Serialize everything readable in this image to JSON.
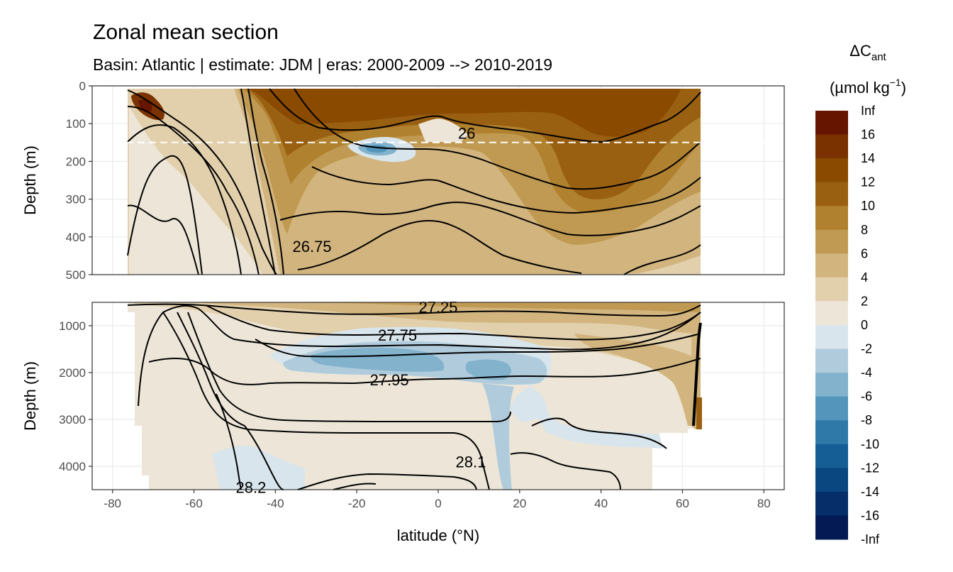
{
  "chart_data": {
    "type": "heatmap",
    "title": "Zonal mean section",
    "subtitle": "Basin: Atlantic | estimate: JDM  | eras: 2000-2009 --> 2010-2019",
    "xlabel": "latitude (°N)",
    "ylabel_top": "Depth (m)",
    "ylabel_bottom": "Depth (m)",
    "x_ticks": [
      "-80",
      "-60",
      "-40",
      "-20",
      "0",
      "20",
      "40",
      "60",
      "80"
    ],
    "x_tick_values": [
      -80,
      -60,
      -40,
      -20,
      0,
      20,
      40,
      60,
      80
    ],
    "xlim": [
      -85,
      85
    ],
    "top_panel": {
      "ylim": [
        0,
        500
      ],
      "y_ticks": [
        "0",
        "100",
        "200",
        "300",
        "400",
        "500"
      ],
      "y_tick_values": [
        0,
        100,
        200,
        300,
        400,
        500
      ],
      "reference_line_depth": 150
    },
    "bottom_panel": {
      "ylim": [
        500,
        4500
      ],
      "y_ticks": [
        "1000",
        "2000",
        "3000",
        "4000"
      ],
      "y_tick_values": [
        1000,
        2000,
        3000,
        4000
      ]
    },
    "legend": {
      "title_main": "ΔC",
      "title_sub": "ant",
      "unit_main": "(µmol kg",
      "unit_sup": "−1",
      "unit_close": ")",
      "labels": [
        "Inf",
        "16",
        "14",
        "12",
        "10",
        "8",
        "6",
        "4",
        "2",
        "0",
        "-2",
        "-4",
        "-6",
        "-8",
        "-10",
        "-12",
        "-14",
        "-16",
        "-Inf"
      ],
      "colors": [
        "#661500",
        "#7a3200",
        "#8a4a00",
        "#9a6012",
        "#b0812f",
        "#c09a52",
        "#d2b57e",
        "#e2d0ad",
        "#ede6d8",
        "#d8e5ec",
        "#b0ccdc",
        "#82b2cc",
        "#5395bb",
        "#2f79a8",
        "#145e95",
        "#0a4680",
        "#062f6a",
        "#031a55"
      ]
    },
    "contour_labels": [
      {
        "text": "26",
        "x": 7,
        "depth": 125,
        "panel": "top"
      },
      {
        "text": "26.75",
        "x": -31,
        "depth": 425,
        "panel": "top"
      },
      {
        "text": "27.25",
        "x": 0,
        "depth": 600,
        "panel": "bottom"
      },
      {
        "text": "27.75",
        "x": -10,
        "depth": 1200,
        "panel": "bottom"
      },
      {
        "text": "27.95",
        "x": -12,
        "depth": 2150,
        "panel": "bottom"
      },
      {
        "text": "28.1",
        "x": 8,
        "depth": 3900,
        "panel": "bottom"
      },
      {
        "text": "28.2",
        "x": -46,
        "depth": 4450,
        "panel": "bottom"
      }
    ]
  }
}
